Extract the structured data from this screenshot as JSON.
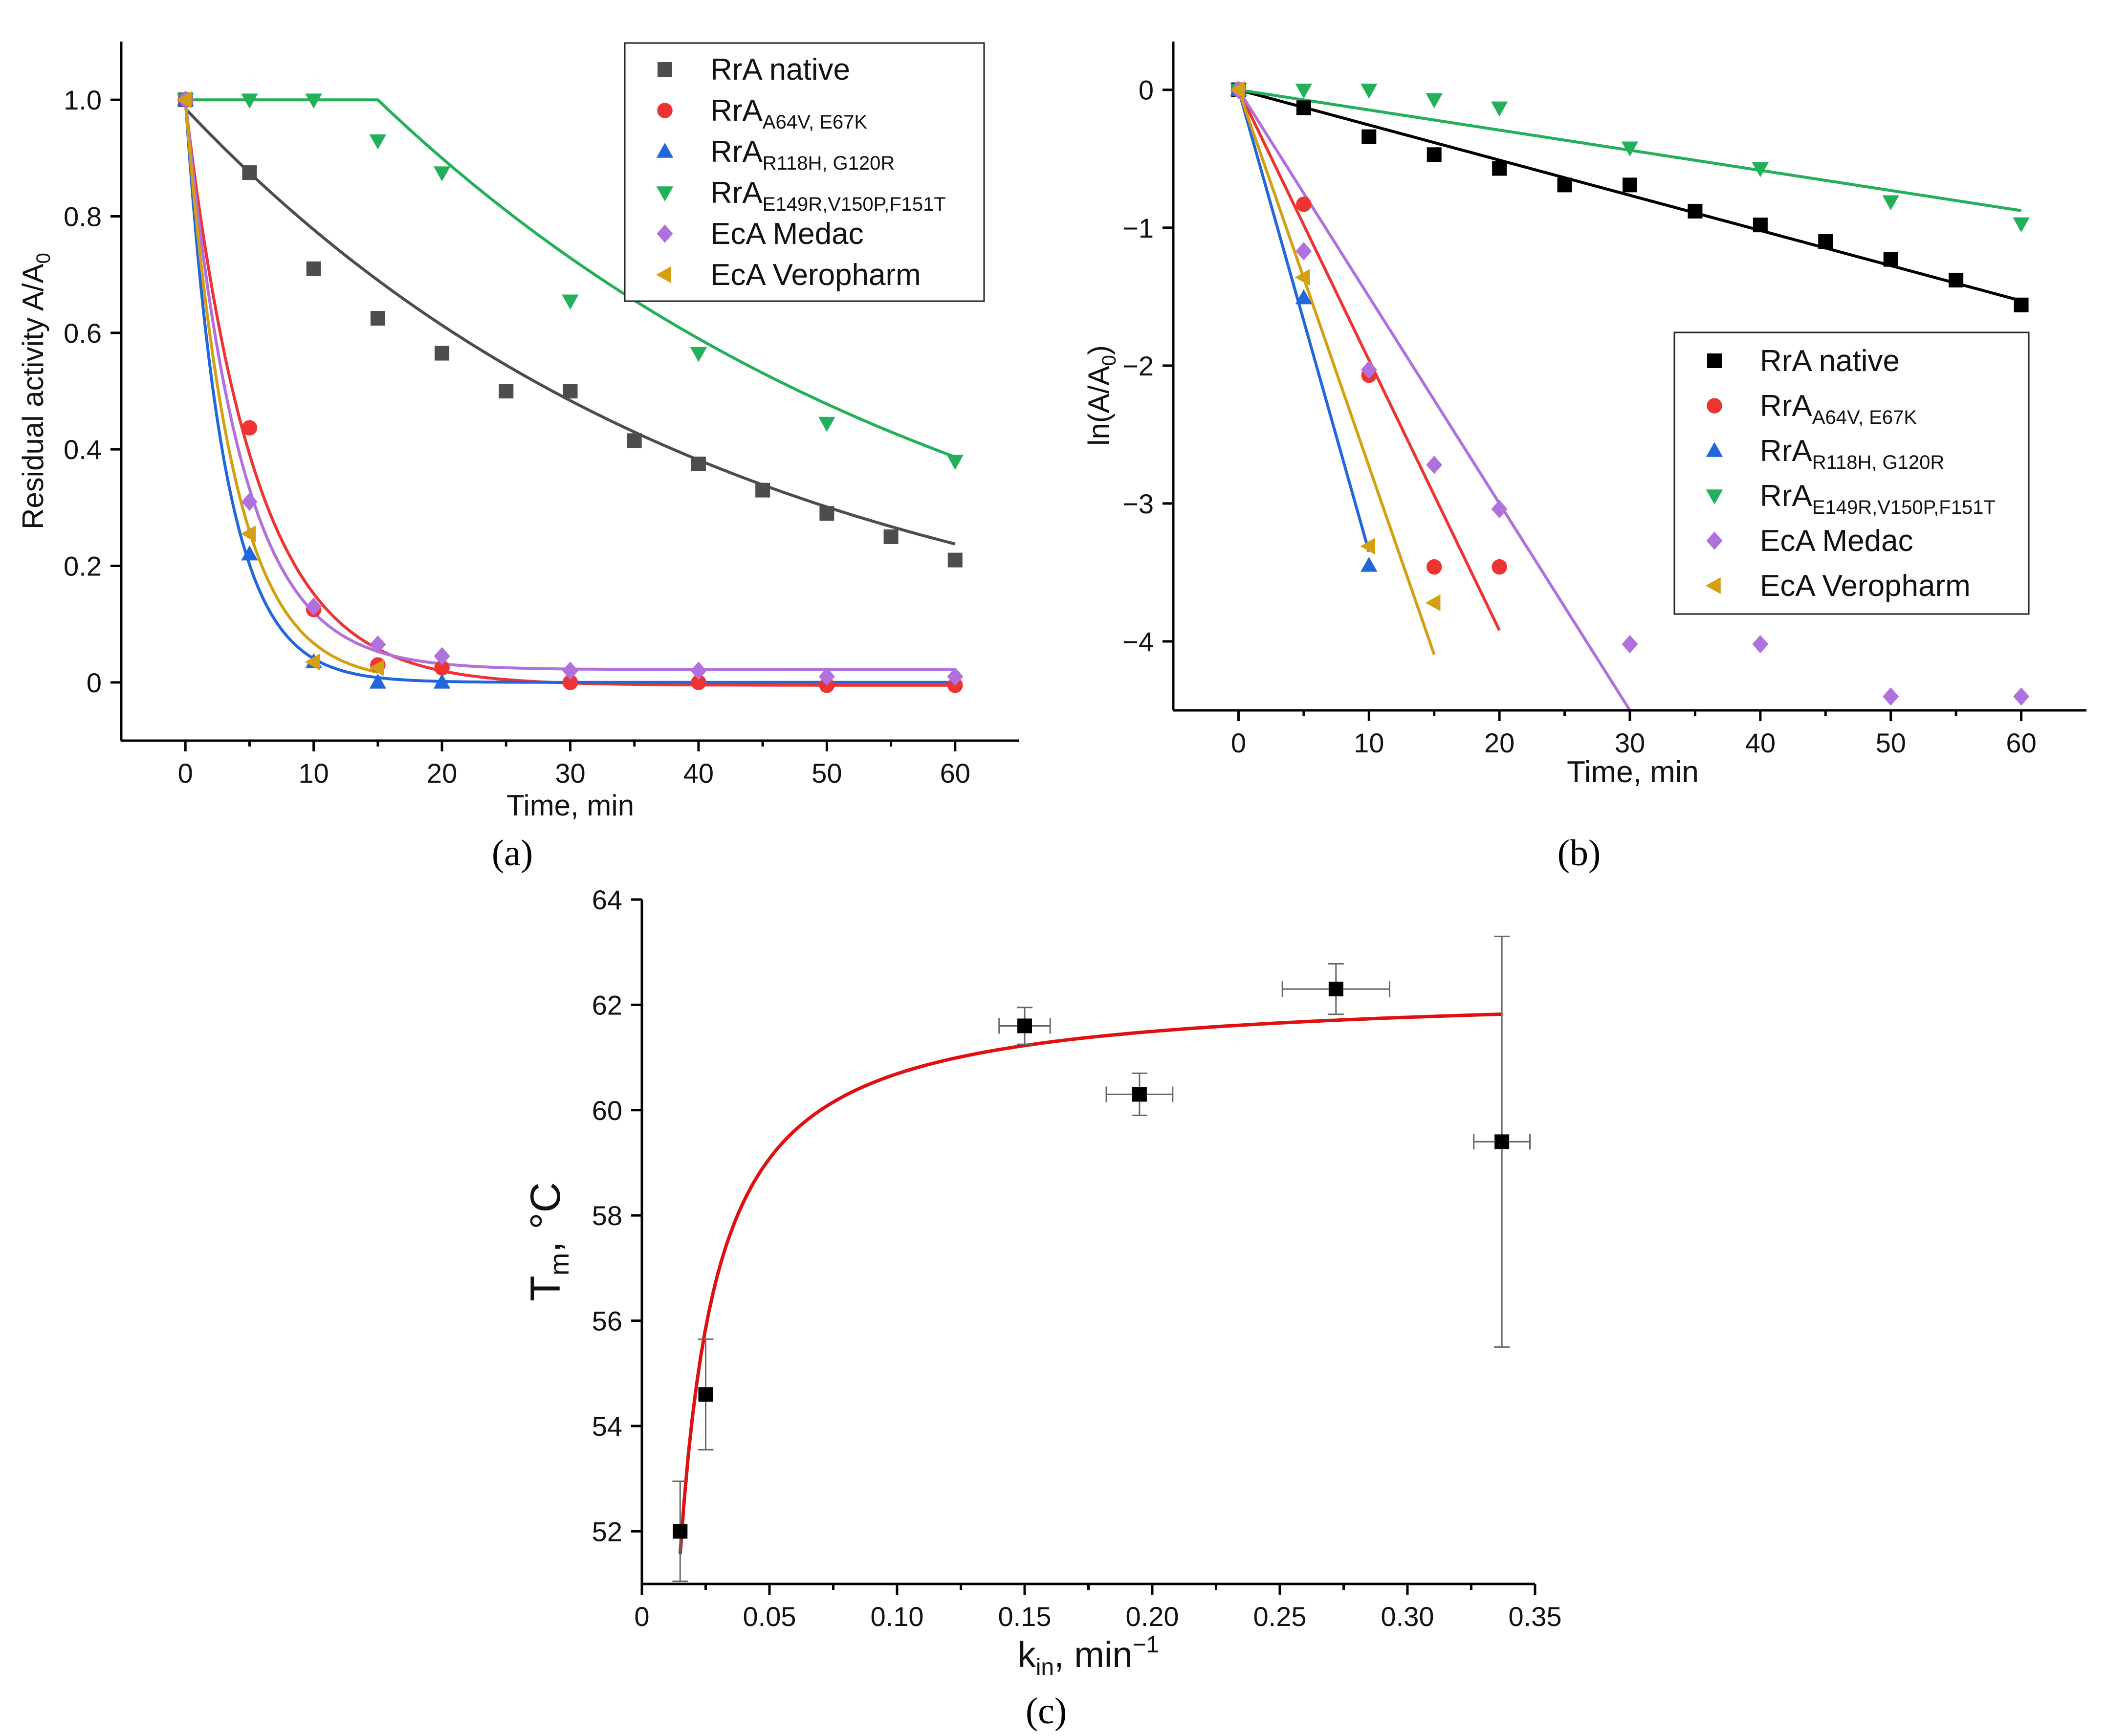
{
  "colors": {
    "rra_native_a": "#4d4d4d",
    "rra_native_b": "#000000",
    "rra_a64v": "#ee3333",
    "rra_r118h": "#2266dd",
    "rra_e149r": "#22b05a",
    "eca_medac": "#b070dd",
    "eca_veropharm": "#d4a012",
    "fit_c": "#e01010",
    "points_c": "#000000",
    "errbar_c": "#666666"
  },
  "chart_data": [
    {
      "panel": "(a)",
      "type": "scatter",
      "xlabel": "Time, min",
      "ylabel": "Residual activity A/A0",
      "ylabel_main": "Residual activity A/A",
      "ylabel_sub": "0",
      "xlim": [
        -5,
        65
      ],
      "ylim": [
        -0.1,
        1.1
      ],
      "xticks": [
        0,
        10,
        20,
        30,
        40,
        50,
        60
      ],
      "yticks": [
        0,
        0.2,
        0.4,
        0.6,
        0.8,
        1.0
      ],
      "ytick_labels": [
        "0",
        "0.2",
        "0.4",
        "0.6",
        "0.8",
        "1.0"
      ],
      "legend_position": "top-right",
      "series": [
        {
          "name": "RrA native",
          "name_main": "RrA native",
          "name_sub": "",
          "marker": "square",
          "color_key": "rra_native_a",
          "x": [
            0,
            5,
            10,
            15,
            20,
            25,
            30,
            35,
            40,
            45,
            50,
            55,
            60
          ],
          "y": [
            1.0,
            0.875,
            0.71,
            0.625,
            0.565,
            0.5,
            0.5,
            0.415,
            0.375,
            0.33,
            0.29,
            0.25,
            0.21
          ],
          "fit": {
            "model": "exp",
            "a": 0.985,
            "k": 0.0237,
            "c": 0,
            "x_from": 0,
            "x_to": 60
          }
        },
        {
          "name": "RrA A64V, E67K",
          "name_main": "RrA",
          "name_sub": "A64V, E67K",
          "marker": "circle",
          "color_key": "rra_a64v",
          "x": [
            0,
            5,
            10,
            15,
            20,
            30,
            40,
            50,
            60
          ],
          "y": [
            1.0,
            0.437,
            0.125,
            0.03,
            0.025,
            0.0,
            0.0,
            -0.005,
            -0.005
          ],
          "fit": {
            "model": "exp",
            "a": 1.0,
            "k": 0.185,
            "c": -0.005,
            "x_from": 0,
            "x_to": 60
          }
        },
        {
          "name": "RrA R118H, G120R",
          "name_main": "RrA",
          "name_sub": "R118H, G120R",
          "marker": "triangle-up",
          "color_key": "rra_r118h",
          "x": [
            0,
            5,
            10,
            15,
            20
          ],
          "y": [
            1.0,
            0.22,
            0.035,
            0.0,
            0.0
          ],
          "fit": {
            "model": "exp",
            "a": 1.0,
            "k": 0.32,
            "c": 0.0,
            "x_from": 0,
            "x_to": 60
          }
        },
        {
          "name": "RrA E149R,V150P,F151T",
          "name_main": "RrA",
          "name_sub": "E149R,V150P,F151T",
          "marker": "triangle-down",
          "color_key": "rra_e149r",
          "x": [
            0,
            5,
            10,
            15,
            20,
            30,
            40,
            50,
            60
          ],
          "y": [
            1.0,
            1.0,
            1.0,
            0.93,
            0.875,
            0.655,
            0.565,
            0.445,
            0.38
          ],
          "fit": {
            "model": "plateau-exp",
            "a": 1.0,
            "k": 0.0211,
            "c": 0,
            "t0": 15,
            "x_from": 0,
            "x_to": 60
          }
        },
        {
          "name": "EcA Medac",
          "name_main": "EcA Medac",
          "name_sub": "",
          "marker": "diamond",
          "color_key": "eca_medac",
          "x": [
            0,
            5,
            10,
            15,
            20,
            30,
            40,
            50,
            60
          ],
          "y": [
            1.0,
            0.31,
            0.13,
            0.065,
            0.045,
            0.02,
            0.02,
            0.01,
            0.01
          ],
          "fit": {
            "model": "exp",
            "a": 0.978,
            "k": 0.23,
            "c": 0.022,
            "x_from": 0,
            "x_to": 60
          }
        },
        {
          "name": "EcA Veropharm",
          "name_main": "EcA Veropharm",
          "name_sub": "",
          "marker": "triangle-left",
          "color_key": "eca_veropharm",
          "x": [
            0,
            5,
            10,
            15
          ],
          "y": [
            1.0,
            0.255,
            0.035,
            0.025
          ],
          "fit": {
            "model": "exp",
            "a": 1.0,
            "k": 0.27,
            "c": 0.0,
            "x_from": 0,
            "x_to": 15
          }
        }
      ]
    },
    {
      "panel": "(b)",
      "type": "scatter",
      "xlabel": "Time, min",
      "ylabel": "ln(A/A0)",
      "ylabel_main": "ln(A/A",
      "ylabel_sub": "0",
      "ylabel_tail": ")",
      "xlim": [
        -5,
        65
      ],
      "ylim": [
        -4.5,
        0.35
      ],
      "xticks": [
        0,
        10,
        20,
        30,
        40,
        50,
        60
      ],
      "yticks": [
        0,
        -1,
        -2,
        -3,
        -4
      ],
      "ytick_labels": [
        "0",
        "−1",
        "−2",
        "−3",
        "−4"
      ],
      "legend_position": "center-right",
      "series": [
        {
          "name": "RrA native",
          "name_main": "RrA native",
          "name_sub": "",
          "marker": "square",
          "color_key": "rra_native_b",
          "x": [
            0,
            5,
            10,
            15,
            20,
            25,
            30,
            35,
            40,
            45,
            50,
            55,
            60
          ],
          "y": [
            0,
            -0.13,
            -0.34,
            -0.47,
            -0.57,
            -0.69,
            -0.69,
            -0.88,
            -0.98,
            -1.1,
            -1.23,
            -1.38,
            -1.56
          ],
          "fit": {
            "model": "line",
            "slope": -0.0255,
            "intercept": 0,
            "x_from": 0,
            "x_to": 60
          }
        },
        {
          "name": "RrA A64V, E67K",
          "name_main": "RrA",
          "name_sub": "A64V, E67K",
          "marker": "circle",
          "color_key": "rra_a64v",
          "x": [
            0,
            5,
            10,
            15,
            20
          ],
          "y": [
            0,
            -0.83,
            -2.07,
            -3.46,
            -3.46
          ],
          "fit": {
            "model": "line",
            "slope": -0.196,
            "intercept": 0,
            "x_from": 0,
            "x_to": 20
          }
        },
        {
          "name": "RrA R118H, G120R",
          "name_main": "RrA",
          "name_sub": "R118H, G120R",
          "marker": "triangle-up",
          "color_key": "rra_r118h",
          "x": [
            0,
            5,
            10
          ],
          "y": [
            0,
            -1.51,
            -3.45
          ],
          "fit": {
            "model": "line",
            "slope": -0.335,
            "intercept": 0,
            "x_from": 0,
            "x_to": 10
          }
        },
        {
          "name": "RrA E149R,V150P,F151T",
          "name_main": "RrA",
          "name_sub": "E149R,V150P,F151T",
          "marker": "triangle-down",
          "color_key": "rra_e149r",
          "x": [
            0,
            5,
            10,
            15,
            20,
            30,
            40,
            50,
            60
          ],
          "y": [
            0,
            0,
            0,
            -0.07,
            -0.13,
            -0.42,
            -0.57,
            -0.81,
            -0.97
          ],
          "fit": {
            "model": "line",
            "slope": -0.0146,
            "intercept": 0,
            "x_from": 0,
            "x_to": 60
          }
        },
        {
          "name": "EcA Medac",
          "name_main": "EcA Medac",
          "name_sub": "",
          "marker": "diamond",
          "color_key": "eca_medac",
          "x": [
            0,
            5,
            10,
            15,
            20,
            30,
            40,
            50,
            60
          ],
          "y": [
            0,
            -1.17,
            -2.03,
            -2.72,
            -3.04,
            -4.02,
            -4.02,
            -4.4,
            -4.4
          ],
          "fit": {
            "model": "line",
            "slope": -0.15,
            "intercept": 0,
            "x_from": 0,
            "x_to": 30
          }
        },
        {
          "name": "EcA Veropharm",
          "name_main": "EcA Veropharm",
          "name_sub": "",
          "marker": "triangle-left",
          "color_key": "eca_veropharm",
          "x": [
            0,
            5,
            10,
            15
          ],
          "y": [
            0,
            -1.36,
            -3.31,
            -3.72
          ],
          "fit": {
            "model": "line",
            "slope": -0.273,
            "intercept": 0,
            "x_from": 0,
            "x_to": 15
          }
        }
      ]
    },
    {
      "panel": "(c)",
      "type": "scatter",
      "xlabel": "kin, min−1",
      "xlabel_main": "k",
      "xlabel_sub": "in",
      "xlabel_mid": ", min",
      "xlabel_sup": "−1",
      "ylabel": "Tm, °C",
      "ylabel_main": "T",
      "ylabel_sub": "m",
      "ylabel_tail": ", °C",
      "xlim": [
        0,
        0.35
      ],
      "ylim": [
        51,
        64
      ],
      "xticks": [
        0,
        0.05,
        0.1,
        0.15,
        0.2,
        0.25,
        0.3,
        0.35
      ],
      "xtick_labels": [
        "0",
        "0.05",
        "0.10",
        "0.15",
        "0.20",
        "0.25",
        "0.30",
        "0.35"
      ],
      "yticks": [
        52,
        54,
        56,
        58,
        60,
        62,
        64
      ],
      "ytick_labels": [
        "52",
        "54",
        "56",
        "58",
        "60",
        "62",
        "64"
      ],
      "points": [
        {
          "x": 0.015,
          "y": 52.0,
          "xerr": 0.0,
          "yerr": 0.95
        },
        {
          "x": 0.025,
          "y": 54.6,
          "xerr": 0.0,
          "yerr": 1.05
        },
        {
          "x": 0.15,
          "y": 61.6,
          "xerr": 0.01,
          "yerr": 0.35
        },
        {
          "x": 0.195,
          "y": 60.3,
          "xerr": 0.013,
          "yerr": 0.4
        },
        {
          "x": 0.272,
          "y": 62.3,
          "xerr": 0.021,
          "yerr": 0.48
        },
        {
          "x": 0.337,
          "y": 59.4,
          "xerr": 0.011,
          "yerr": 3.9
        }
      ],
      "fit": {
        "model": "hyperbolic",
        "a": 62.3,
        "b": 0.161,
        "x_from": 0.015,
        "x_to": 0.337
      }
    }
  ]
}
